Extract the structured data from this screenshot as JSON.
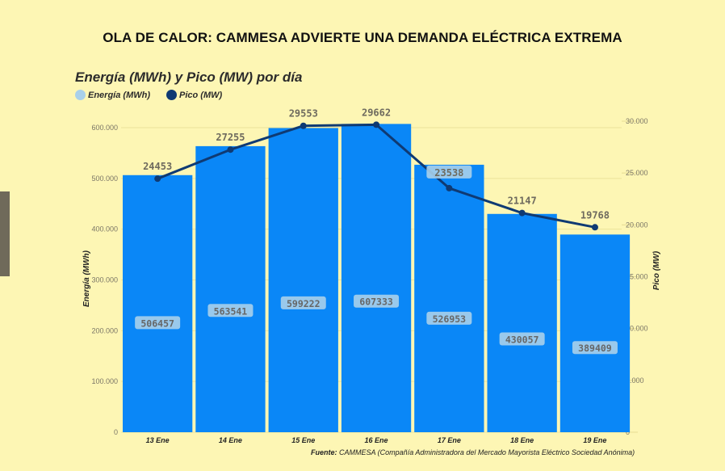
{
  "headline": "OLA DE CALOR: CAMMESA ADVIERTE UNA DEMANDA ELÉCTRICA EXTREMA",
  "source": {
    "label": "Fuente:",
    "text": " CAMMESA (Compañía Administradora del Mercado Mayorista Eléctrico Sociedad Anónima)"
  },
  "colors": {
    "bar": "#0a87f7",
    "line": "#0f3a73",
    "legend_energy": "#a9d0ea",
    "legend_pico": "#0f3a73",
    "background": "#fdf6b4"
  },
  "chart_data": {
    "type": "bar",
    "title": "Energía (MWh) y Pico (MW) por día",
    "legend": [
      {
        "name": "Energía (MWh)",
        "marker": "circle"
      },
      {
        "name": "Pico (MW)",
        "marker": "circle"
      }
    ],
    "legend_position": "top-left",
    "categories": [
      "13 Ene",
      "14 Ene",
      "15 Ene",
      "16 Ene",
      "17 Ene",
      "18 Ene",
      "19 Ene"
    ],
    "series": [
      {
        "name": "Energía (MWh)",
        "type": "bar",
        "axis": "left",
        "values": [
          506457,
          563541,
          599222,
          607333,
          526953,
          430057,
          389409
        ]
      },
      {
        "name": "Pico (MW)",
        "type": "line",
        "axis": "right",
        "values": [
          24453,
          27255,
          29553,
          29662,
          23538,
          21147,
          19768
        ]
      }
    ],
    "ylabel": "Energía (MWh)",
    "ylabel_right": "Pico (MW)",
    "xlabel": "",
    "ylim": [
      0,
      600000
    ],
    "ylim_right": [
      0,
      30000
    ],
    "yticks": [
      "0",
      "100.000",
      "200.000",
      "300.000",
      "400.000",
      "500.000",
      "600.000"
    ],
    "yticks_right": [
      "0",
      "5.000",
      "10.000",
      "15.000",
      "20.000",
      "25.000",
      "30.000"
    ],
    "grid": true
  }
}
